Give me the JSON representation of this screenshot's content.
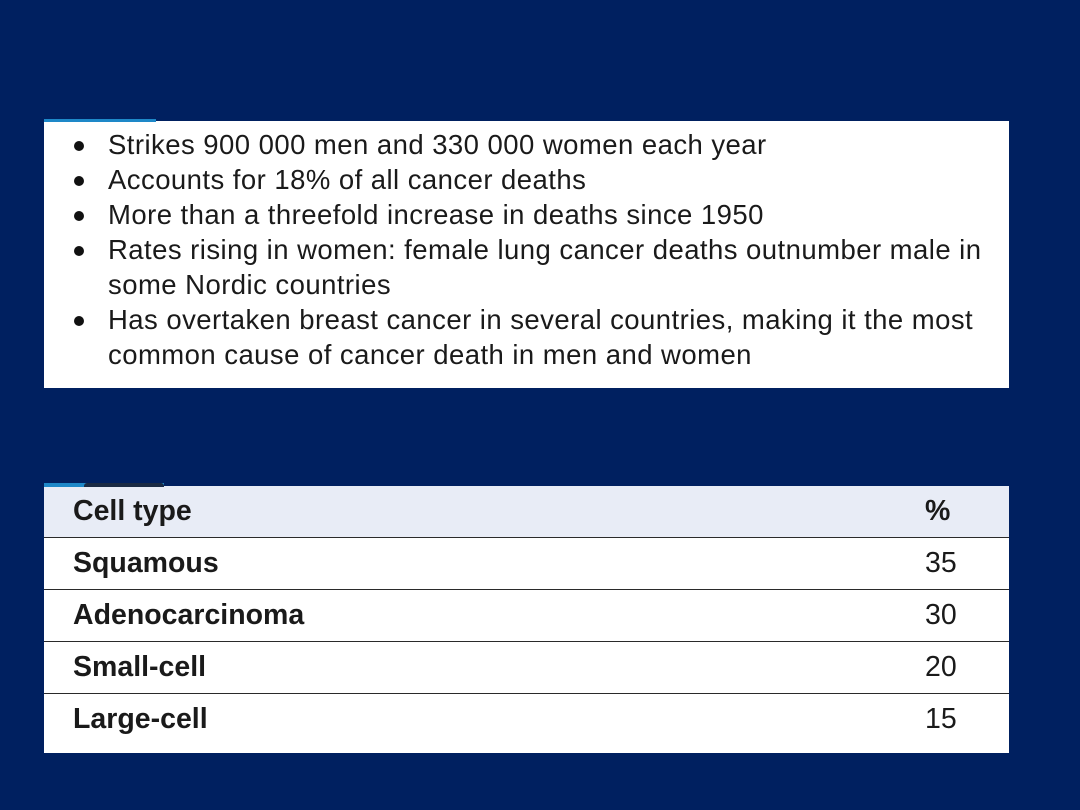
{
  "facts": [
    "Strikes 900 000 men and 330 000 women each year",
    "Accounts for 18% of all cancer deaths",
    "More than a threefold increase in deaths since 1950",
    "Rates rising in women: female lung cancer deaths outnumber male in some Nordic countries",
    "Has overtaken breast cancer in several countries, making it the most common cause of cancer death in men and women"
  ],
  "table": {
    "headers": [
      "Cell type",
      "%"
    ],
    "rows": [
      [
        "Squamous",
        "35"
      ],
      [
        "Adenocarcinoma",
        "30"
      ],
      [
        "Small-cell",
        "20"
      ],
      [
        "Large-cell",
        "15"
      ]
    ]
  }
}
